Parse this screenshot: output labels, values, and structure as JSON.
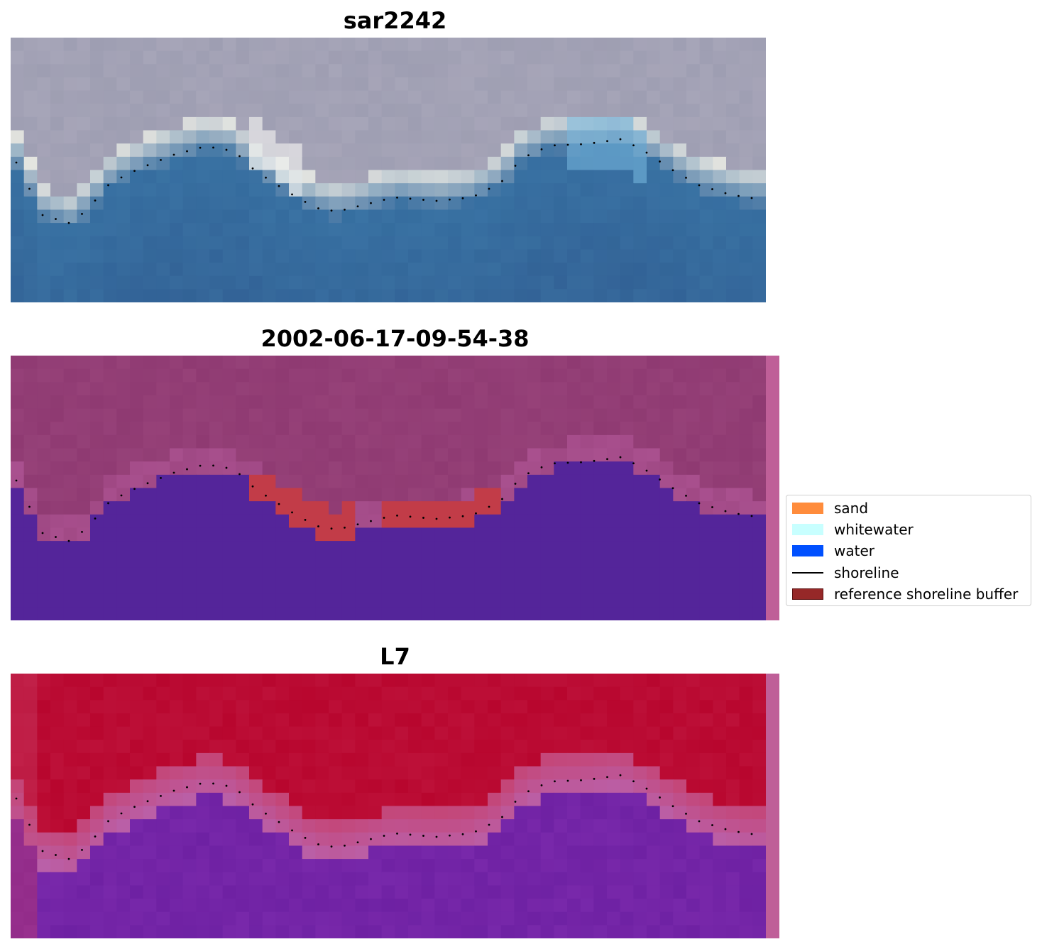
{
  "panels": [
    {
      "title": "sar2242",
      "kind": "rgb"
    },
    {
      "title": "2002-06-17-09-54-38",
      "kind": "classified"
    },
    {
      "title": "L7",
      "kind": "index"
    }
  ],
  "legend": {
    "items": [
      {
        "label": "sand",
        "type": "patch",
        "color": "#ff8c3c"
      },
      {
        "label": "whitewater",
        "type": "patch",
        "color": "#c8ffff"
      },
      {
        "label": "water",
        "type": "patch",
        "color": "#0050ff"
      },
      {
        "label": "shoreline",
        "type": "line",
        "color": "#000000"
      },
      {
        "label": "reference shoreline buffer",
        "type": "patch",
        "color": "#962828"
      }
    ]
  },
  "colors": {
    "water_class": "#54259a",
    "buffer_overlay": "#c23c48",
    "land_overlay": "#8f3a72",
    "side_strip": "#bf5f98",
    "index_high": "#b8062e",
    "index_low": "#6a1ea0"
  }
}
